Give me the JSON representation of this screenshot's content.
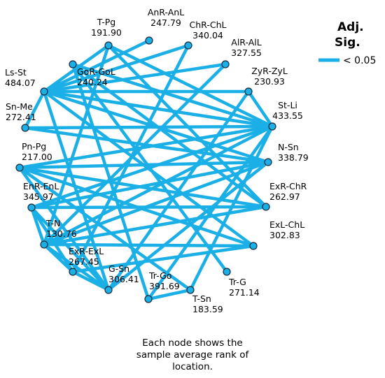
{
  "legend": {
    "title_line1": "Adj.",
    "title_line2": "Sig.",
    "entry_label": "< 0.05",
    "line_color": "#1AAFE6"
  },
  "node_color": "#1AAFE6",
  "nodes": [
    {
      "id": "t_pg",
      "name": "T-Pg",
      "rank": "191.90"
    },
    {
      "id": "anr_anl",
      "name": "AnR-AnL",
      "rank": "247.79"
    },
    {
      "id": "chr_chl",
      "name": "ChR-ChL",
      "rank": "340.04"
    },
    {
      "id": "alr_all",
      "name": "AlR-AlL",
      "rank": "327.55"
    },
    {
      "id": "zyr_zyl",
      "name": "ZyR-ZyL",
      "rank": "230.93"
    },
    {
      "id": "st_li",
      "name": "St-Li",
      "rank": "433.55"
    },
    {
      "id": "n_sn",
      "name": "N-Sn",
      "rank": "338.79"
    },
    {
      "id": "exr_chr",
      "name": "ExR-ChR",
      "rank": "262.97"
    },
    {
      "id": "exl_chl",
      "name": "ExL-ChL",
      "rank": "302.83"
    },
    {
      "id": "tr_g",
      "name": "Tr-G",
      "rank": "271.14"
    },
    {
      "id": "t_sn",
      "name": "T-Sn",
      "rank": "183.59"
    },
    {
      "id": "tr_go",
      "name": "Tr-Go",
      "rank": "391.69"
    },
    {
      "id": "g_sn",
      "name": "G-Sn",
      "rank": "306.41"
    },
    {
      "id": "exr_exl",
      "name": "ExR-ExL",
      "rank": "267.45"
    },
    {
      "id": "t_n",
      "name": "T-N",
      "rank": "130.76"
    },
    {
      "id": "enr_enl",
      "name": "EnR-EnL",
      "rank": "345.97"
    },
    {
      "id": "pn_pg",
      "name": "Pn-Pg",
      "rank": "217.00"
    },
    {
      "id": "sn_me",
      "name": "Sn-Me",
      "rank": "272.41"
    },
    {
      "id": "ls_st",
      "name": "Ls-St",
      "rank": "484.07"
    },
    {
      "id": "gor_gol",
      "name": "GoR-GoL",
      "rank": "240.24"
    }
  ],
  "edges": [
    [
      "ls_st",
      "t_pg"
    ],
    [
      "ls_st",
      "anr_anl"
    ],
    [
      "ls_st",
      "chr_chl"
    ],
    [
      "ls_st",
      "alr_all"
    ],
    [
      "ls_st",
      "st_li"
    ],
    [
      "ls_st",
      "zyr_zyl"
    ],
    [
      "ls_st",
      "sn_me"
    ],
    [
      "ls_st",
      "g_sn"
    ],
    [
      "ls_st",
      "n_sn"
    ],
    [
      "ls_st",
      "exl_chl"
    ],
    [
      "sn_me",
      "n_sn"
    ],
    [
      "sn_me",
      "st_li"
    ],
    [
      "t_pg",
      "st_li"
    ],
    [
      "t_pg",
      "t_n"
    ],
    [
      "t_pg",
      "exr_chr"
    ],
    [
      "gor_gol",
      "st_li"
    ],
    [
      "gor_gol",
      "exr_chr"
    ],
    [
      "gor_gol",
      "tr_g"
    ],
    [
      "gor_gol",
      "tr_go"
    ],
    [
      "alr_all",
      "t_n"
    ],
    [
      "chr_chl",
      "exr_exl"
    ],
    [
      "zyr_zyl",
      "g_sn"
    ],
    [
      "st_li",
      "t_n"
    ],
    [
      "st_li",
      "pn_pg"
    ],
    [
      "st_li",
      "enr_enl"
    ],
    [
      "st_li",
      "tr_go"
    ],
    [
      "st_li",
      "t_sn"
    ],
    [
      "st_li",
      "zyr_zyl"
    ],
    [
      "n_sn",
      "pn_pg"
    ],
    [
      "n_sn",
      "t_n"
    ],
    [
      "n_sn",
      "enr_enl"
    ],
    [
      "n_sn",
      "g_sn"
    ],
    [
      "exr_chr",
      "enr_enl"
    ],
    [
      "exr_chr",
      "t_n"
    ],
    [
      "exl_chl",
      "t_n"
    ],
    [
      "exl_chl",
      "exr_exl"
    ],
    [
      "pn_pg",
      "exr_chr"
    ],
    [
      "pn_pg",
      "g_sn"
    ],
    [
      "pn_pg",
      "t_sn"
    ],
    [
      "pn_pg",
      "exl_chl"
    ],
    [
      "enr_enl",
      "t_n"
    ],
    [
      "enr_enl",
      "exr_exl"
    ],
    [
      "enr_enl",
      "g_sn"
    ],
    [
      "t_n",
      "exr_exl"
    ],
    [
      "t_n",
      "g_sn"
    ],
    [
      "exr_exl",
      "g_sn"
    ],
    [
      "tr_go",
      "t_sn"
    ]
  ],
  "caption": {
    "line1": "Each node shows the",
    "line2": "sample average rank of",
    "line3": "location."
  }
}
